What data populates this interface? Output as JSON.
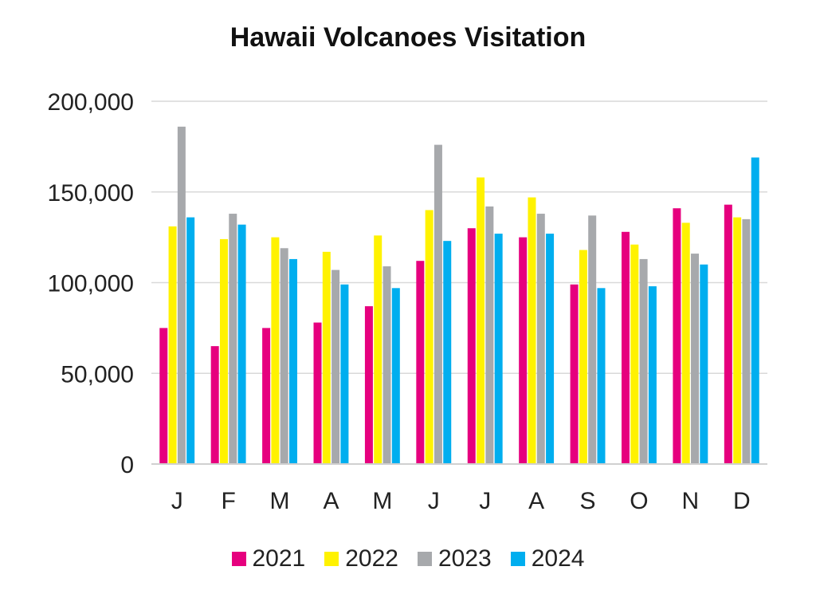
{
  "chart_data": {
    "type": "bar",
    "title": "Hawaii Volcanoes Visitation",
    "xlabel": "",
    "ylabel": "",
    "categories": [
      "J",
      "F",
      "M",
      "A",
      "M",
      "J",
      "J",
      "A",
      "S",
      "O",
      "N",
      "D"
    ],
    "ylim": [
      0,
      200000
    ],
    "yticks": [
      0,
      50000,
      100000,
      150000,
      200000
    ],
    "ytick_labels": [
      "0",
      "50,000",
      "100,000",
      "150,000",
      "200,000"
    ],
    "grid": true,
    "legend_position": "bottom",
    "series": [
      {
        "name": "2021",
        "color": "#e6007e",
        "values": [
          75000,
          65000,
          75000,
          78000,
          87000,
          112000,
          130000,
          125000,
          99000,
          128000,
          141000,
          143000
        ]
      },
      {
        "name": "2022",
        "color": "#fff200",
        "values": [
          131000,
          124000,
          125000,
          117000,
          126000,
          140000,
          158000,
          147000,
          118000,
          121000,
          133000,
          136000
        ]
      },
      {
        "name": "2023",
        "color": "#a7a9ac",
        "values": [
          186000,
          138000,
          119000,
          107000,
          109000,
          176000,
          142000,
          138000,
          137000,
          113000,
          116000,
          135000
        ]
      },
      {
        "name": "2024",
        "color": "#00aeef",
        "values": [
          136000,
          132000,
          113000,
          99000,
          97000,
          123000,
          127000,
          127000,
          97000,
          98000,
          110000,
          169000
        ]
      }
    ]
  }
}
